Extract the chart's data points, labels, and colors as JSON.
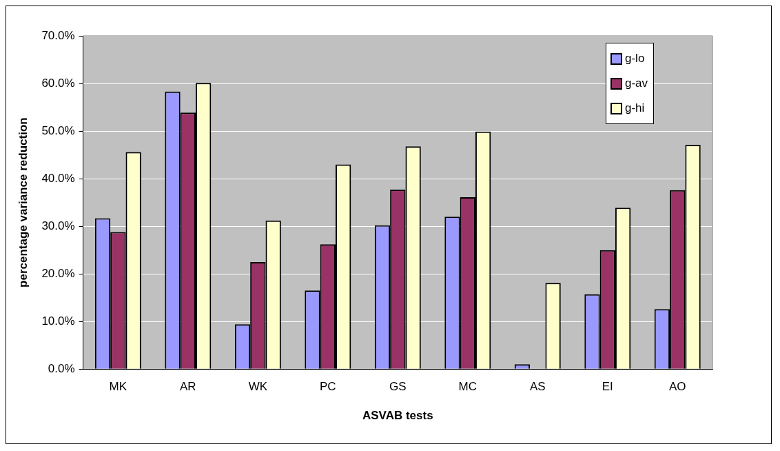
{
  "chart_data": {
    "type": "bar",
    "xlabel": "ASVAB tests",
    "ylabel": "percentage variance reduction",
    "categories": [
      "MK",
      "AR",
      "WK",
      "PC",
      "GS",
      "MC",
      "AS",
      "EI",
      "AO"
    ],
    "series": [
      {
        "name": "g-lo",
        "color": "#9999ff",
        "values": [
          31.7,
          58.3,
          9.4,
          16.5,
          30.2,
          32.0,
          1.0,
          15.7,
          12.6
        ]
      },
      {
        "name": "g-av",
        "color": "#993366",
        "values": [
          28.8,
          53.9,
          22.5,
          26.2,
          37.7,
          36.1,
          null,
          25.0,
          37.6
        ]
      },
      {
        "name": "g-hi",
        "color": "#ffffcc",
        "values": [
          45.6,
          60.1,
          31.2,
          43.0,
          46.8,
          49.9,
          18.1,
          33.9,
          47.1
        ]
      }
    ],
    "ylim": [
      0,
      70
    ],
    "yticks": [
      {
        "value": 0,
        "label": "0.0%"
      },
      {
        "value": 10,
        "label": "10.0%"
      },
      {
        "value": 20,
        "label": "20.0%"
      },
      {
        "value": 30,
        "label": "30.0%"
      },
      {
        "value": 40,
        "label": "40.0%"
      },
      {
        "value": 50,
        "label": "50.0%"
      },
      {
        "value": 60,
        "label": "60.0%"
      },
      {
        "value": 70,
        "label": "70.0%"
      }
    ],
    "grid": "y",
    "legend": "top right"
  }
}
